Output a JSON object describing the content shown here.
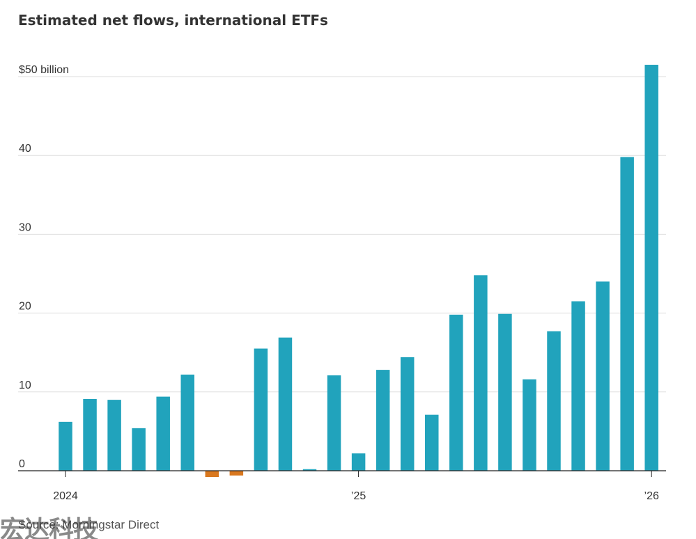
{
  "colors": {
    "positive": "#21a3bc",
    "negative": "#d9781f",
    "grid": "#dddddd",
    "baseline": "#222222"
  },
  "watermark": "宏达科技",
  "source": "Source: Morningstar Direct",
  "chart_data": {
    "type": "bar",
    "title": "Estimated net flows, international ETFs",
    "xlabel": "",
    "ylabel": "",
    "ylim": [
      0,
      50
    ],
    "y_ticks": [
      {
        "value": 0,
        "label": "0"
      },
      {
        "value": 10,
        "label": "10"
      },
      {
        "value": 20,
        "label": "20"
      },
      {
        "value": 30,
        "label": "30"
      },
      {
        "value": 40,
        "label": "40"
      },
      {
        "value": 50,
        "label": "$50 billion"
      }
    ],
    "x_ticks": [
      {
        "index": 0,
        "label": "2024"
      },
      {
        "index": 12,
        "label": "’25"
      },
      {
        "index": 24,
        "label": "’26"
      }
    ],
    "grid": true,
    "legend": "none",
    "categories": [
      "2024-01",
      "2024-02",
      "2024-03",
      "2024-04",
      "2024-05",
      "2024-06",
      "2024-07",
      "2024-08",
      "2024-09",
      "2024-10",
      "2024-11",
      "2024-12",
      "2025-01",
      "2025-02",
      "2025-03",
      "2025-04",
      "2025-05",
      "2025-06",
      "2025-07",
      "2025-08",
      "2025-09",
      "2025-10",
      "2025-11",
      "2025-12",
      "2026-01"
    ],
    "values": [
      6.2,
      9.1,
      9.0,
      5.4,
      9.4,
      12.2,
      -0.8,
      -0.6,
      15.5,
      16.9,
      0.2,
      12.1,
      2.2,
      12.8,
      14.4,
      7.1,
      19.8,
      24.8,
      19.9,
      11.6,
      17.7,
      21.5,
      24.0,
      39.8,
      51.5
    ]
  }
}
